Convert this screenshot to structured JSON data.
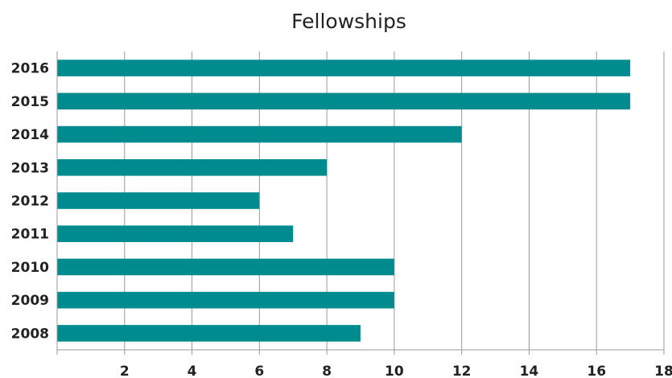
{
  "chart_data": {
    "type": "bar",
    "orientation": "horizontal",
    "title": "Fellowships",
    "categories": [
      "2008",
      "2009",
      "2010",
      "2011",
      "2012",
      "2013",
      "2014",
      "2015",
      "2016"
    ],
    "values": [
      9,
      10,
      10,
      7,
      6,
      8,
      12,
      17,
      17
    ],
    "xlim": [
      0,
      18
    ],
    "xticks": [
      2,
      4,
      6,
      8,
      10,
      12,
      14,
      16,
      18
    ],
    "xlabel": "",
    "ylabel": "",
    "grid": "vertical",
    "legend": "none",
    "bar_color": "#008c8f",
    "grid_color": "#999999"
  }
}
